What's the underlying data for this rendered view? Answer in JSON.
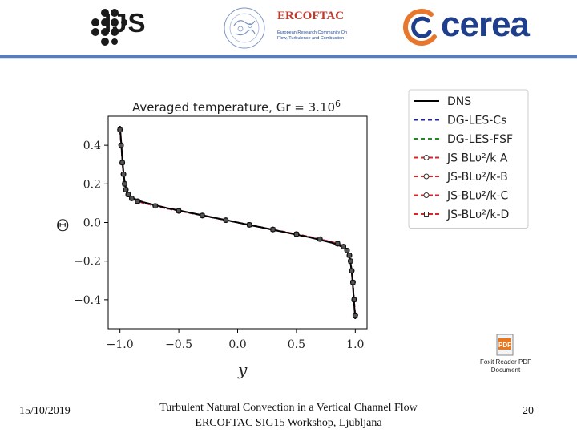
{
  "header": {
    "ijs_logo": "IJS",
    "ercoftac_title": "ERCOFTAC",
    "ercoftac_subtitle_1": "European Research Community On",
    "ercoftac_subtitle_2": "Flow, Turbulence and Combustion",
    "cerea_logo": "cerea",
    "accent_color": "#5b7db5",
    "cerea_color": "#1f3e8c",
    "cerea_swirl_color": "#e8762c",
    "ercoftac_color": "#c0392b"
  },
  "foxit": {
    "icon": "foxit-pdf-icon",
    "label_1": "Foxit Reader PDF",
    "label_2": "Document"
  },
  "footer": {
    "date": "15/10/2019",
    "title_line1": "Turbulent Natural Convection in a Vertical Channel Flow",
    "title_line2": "ERCOFTAC SIG15 Workshop, Ljubljana",
    "page": "20"
  },
  "chart_data": {
    "type": "line",
    "title": "Averaged temperature, Gr = 3.10^6",
    "xlabel": "y",
    "ylabel": "Θ",
    "xlim": [
      -1.1,
      1.1
    ],
    "ylim": [
      -0.55,
      0.55
    ],
    "xticks": [
      -1.0,
      -0.5,
      0.0,
      0.5,
      1.0
    ],
    "xtick_labels": [
      "−1.0",
      "−0.5",
      "0.0",
      "0.5",
      "1.0"
    ],
    "yticks": [
      0.4,
      0.2,
      0.0,
      -0.2,
      -0.4
    ],
    "ytick_labels": [
      "0.4",
      "0.2",
      "0.0",
      "−0.2",
      "−0.4"
    ],
    "grid": false,
    "legend_position": "outside-right",
    "x": [
      -1.0,
      -0.99,
      -0.98,
      -0.97,
      -0.96,
      -0.95,
      -0.93,
      -0.9,
      -0.85,
      -0.8,
      -0.7,
      -0.6,
      -0.5,
      -0.4,
      -0.3,
      -0.2,
      -0.1,
      0.0,
      0.1,
      0.2,
      0.3,
      0.4,
      0.5,
      0.6,
      0.7,
      0.8,
      0.85,
      0.9,
      0.93,
      0.95,
      0.96,
      0.97,
      0.98,
      0.99,
      1.0
    ],
    "series": [
      {
        "name": "DNS",
        "color": "#000000",
        "dash": "",
        "marker": "",
        "values": [
          0.5,
          0.42,
          0.33,
          0.26,
          0.21,
          0.18,
          0.15,
          0.13,
          0.115,
          0.105,
          0.09,
          0.075,
          0.063,
          0.05,
          0.038,
          0.025,
          0.013,
          0.0,
          -0.013,
          -0.025,
          -0.038,
          -0.05,
          -0.063,
          -0.075,
          -0.09,
          -0.105,
          -0.115,
          -0.13,
          -0.15,
          -0.18,
          -0.21,
          -0.26,
          -0.33,
          -0.42,
          -0.5
        ]
      },
      {
        "name": "DG-LES-Cs",
        "color": "#1f1fb4",
        "dash": "5,4",
        "marker": "",
        "values": [
          0.49,
          0.41,
          0.32,
          0.255,
          0.205,
          0.175,
          0.148,
          0.128,
          0.113,
          0.103,
          0.088,
          0.074,
          0.062,
          0.049,
          0.037,
          0.024,
          0.012,
          0.0,
          -0.012,
          -0.024,
          -0.037,
          -0.049,
          -0.062,
          -0.074,
          -0.088,
          -0.103,
          -0.113,
          -0.128,
          -0.148,
          -0.175,
          -0.205,
          -0.255,
          -0.32,
          -0.41,
          -0.49
        ]
      },
      {
        "name": "DG-LES-FSF",
        "color": "#1f8a1f",
        "dash": "5,4",
        "marker": "",
        "values": [
          0.49,
          0.41,
          0.325,
          0.258,
          0.208,
          0.178,
          0.15,
          0.13,
          0.114,
          0.104,
          0.089,
          0.074,
          0.062,
          0.049,
          0.037,
          0.025,
          0.012,
          0.0,
          -0.012,
          -0.025,
          -0.037,
          -0.049,
          -0.062,
          -0.074,
          -0.089,
          -0.104,
          -0.114,
          -0.13,
          -0.15,
          -0.178,
          -0.208,
          -0.258,
          -0.325,
          -0.41,
          -0.49
        ]
      },
      {
        "name": "JS BLυ²/k A",
        "color": "#d62728",
        "dash": "6,3",
        "marker": "circle",
        "values": [
          0.48,
          0.4,
          0.31,
          0.25,
          0.2,
          0.17,
          0.145,
          0.125,
          0.11,
          0.1,
          0.086,
          0.072,
          0.06,
          0.048,
          0.036,
          0.024,
          0.012,
          0.0,
          -0.012,
          -0.024,
          -0.036,
          -0.048,
          -0.06,
          -0.072,
          -0.086,
          -0.1,
          -0.11,
          -0.125,
          -0.145,
          -0.17,
          -0.2,
          -0.25,
          -0.31,
          -0.4,
          -0.48
        ]
      },
      {
        "name": "JS-BLυ²/k-B",
        "color": "#d62728",
        "dash": "6,3",
        "marker": "circle",
        "values": [
          0.48,
          0.4,
          0.31,
          0.25,
          0.2,
          0.17,
          0.145,
          0.125,
          0.11,
          0.1,
          0.086,
          0.072,
          0.06,
          0.048,
          0.036,
          0.024,
          0.012,
          0.0,
          -0.012,
          -0.024,
          -0.036,
          -0.048,
          -0.06,
          -0.072,
          -0.086,
          -0.1,
          -0.11,
          -0.125,
          -0.145,
          -0.17,
          -0.2,
          -0.25,
          -0.31,
          -0.4,
          -0.48
        ]
      },
      {
        "name": "JS-BLυ²/k-C",
        "color": "#d62728",
        "dash": "6,3",
        "marker": "circle",
        "values": [
          0.48,
          0.4,
          0.31,
          0.25,
          0.2,
          0.17,
          0.145,
          0.125,
          0.11,
          0.1,
          0.086,
          0.072,
          0.06,
          0.048,
          0.036,
          0.024,
          0.012,
          0.0,
          -0.012,
          -0.024,
          -0.036,
          -0.048,
          -0.06,
          -0.072,
          -0.086,
          -0.1,
          -0.11,
          -0.125,
          -0.145,
          -0.17,
          -0.2,
          -0.25,
          -0.31,
          -0.4,
          -0.48
        ]
      },
      {
        "name": "JS-BLυ²/k-D",
        "color": "#d62728",
        "dash": "6,3",
        "marker": "square",
        "values": [
          0.48,
          0.4,
          0.31,
          0.25,
          0.2,
          0.17,
          0.145,
          0.125,
          0.11,
          0.1,
          0.086,
          0.072,
          0.06,
          0.048,
          0.036,
          0.024,
          0.012,
          0.0,
          -0.012,
          -0.024,
          -0.036,
          -0.048,
          -0.06,
          -0.072,
          -0.086,
          -0.1,
          -0.11,
          -0.125,
          -0.145,
          -0.17,
          -0.2,
          -0.25,
          -0.31,
          -0.4,
          -0.48
        ]
      }
    ]
  }
}
